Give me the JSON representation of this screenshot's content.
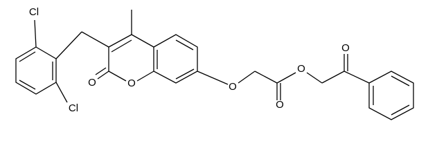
{
  "atoms": [
    {
      "label": "Cl"
    },
    {
      "label": "Cl"
    },
    {
      "label": "O"
    },
    {
      "label": "O"
    },
    {
      "label": "O"
    },
    {
      "label": "O"
    },
    {
      "label": "O"
    },
    {
      "label": "O"
    }
  ]
}
